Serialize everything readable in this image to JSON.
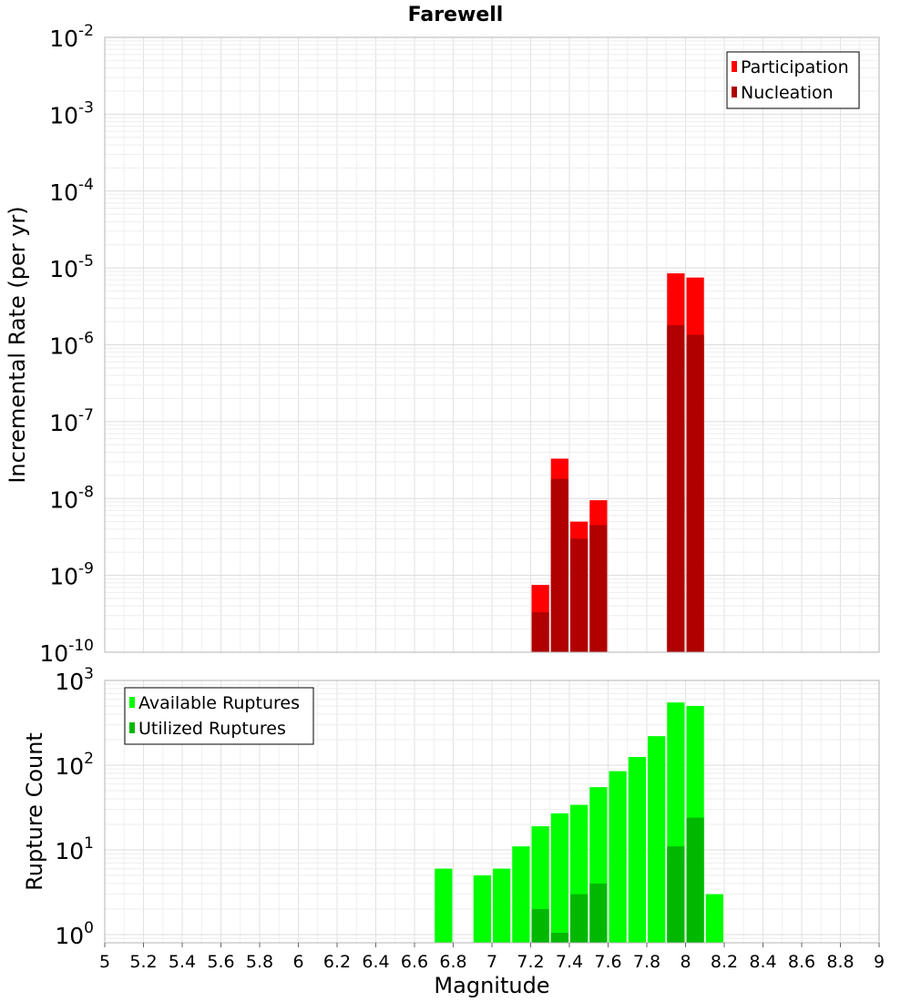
{
  "title": "Farewell",
  "chart_data": [
    {
      "type": "bar",
      "yscale": "log",
      "ylabel": "Incremental Rate (per yr)",
      "ylim": [
        1e-10,
        0.01
      ],
      "xlim": [
        5,
        9
      ],
      "ytick_exponents": [
        -2,
        -3,
        -4,
        -5,
        -6,
        -7,
        -8,
        -9,
        -10
      ],
      "legend": {
        "placement": "top-right",
        "entries": [
          "Participation",
          "Nucleation"
        ]
      },
      "series": [
        {
          "name": "Participation",
          "color": "#ff0000",
          "x": [
            7.25,
            7.35,
            7.45,
            7.55,
            7.95,
            8.05
          ],
          "values": [
            7.5e-10,
            3.3e-08,
            5e-09,
            9.5e-09,
            8.5e-06,
            7.5e-06
          ]
        },
        {
          "name": "Nucleation",
          "color": "#b00000",
          "x": [
            7.25,
            7.35,
            7.45,
            7.55,
            7.95,
            8.05
          ],
          "values": [
            3.3e-10,
            1.8e-08,
            3e-09,
            4.5e-09,
            1.8e-06,
            1.35e-06
          ]
        }
      ]
    },
    {
      "type": "bar",
      "yscale": "log",
      "ylabel": "Rupture Count",
      "xlabel": "Magnitude",
      "ylim": [
        0.8,
        1000
      ],
      "xlim": [
        5,
        9
      ],
      "ytick_exponents": [
        3,
        2,
        1,
        0
      ],
      "xticks": [
        "5",
        "5.2",
        "5.4",
        "5.6",
        "5.8",
        "6",
        "6.2",
        "6.4",
        "6.6",
        "6.8",
        "7",
        "7.2",
        "7.4",
        "7.6",
        "7.8",
        "8",
        "8.2",
        "8.4",
        "8.6",
        "8.8",
        "9"
      ],
      "legend": {
        "placement": "top-left",
        "entries": [
          "Available Ruptures",
          "Utilized Ruptures"
        ]
      },
      "series": [
        {
          "name": "Available Ruptures",
          "color": "#00ff00",
          "x": [
            6.75,
            6.95,
            7.05,
            7.15,
            7.25,
            7.35,
            7.45,
            7.55,
            7.65,
            7.75,
            7.85,
            7.95,
            8.05,
            8.15
          ],
          "values": [
            6,
            5,
            6,
            11,
            19,
            27,
            34,
            55,
            85,
            125,
            220,
            550,
            500,
            3
          ]
        },
        {
          "name": "Utilized Ruptures",
          "color": "#00b800",
          "x": [
            7.25,
            7.35,
            7.45,
            7.55,
            7.95,
            8.05
          ],
          "values": [
            2,
            1.05,
            3,
            4,
            11,
            24
          ]
        }
      ]
    }
  ]
}
